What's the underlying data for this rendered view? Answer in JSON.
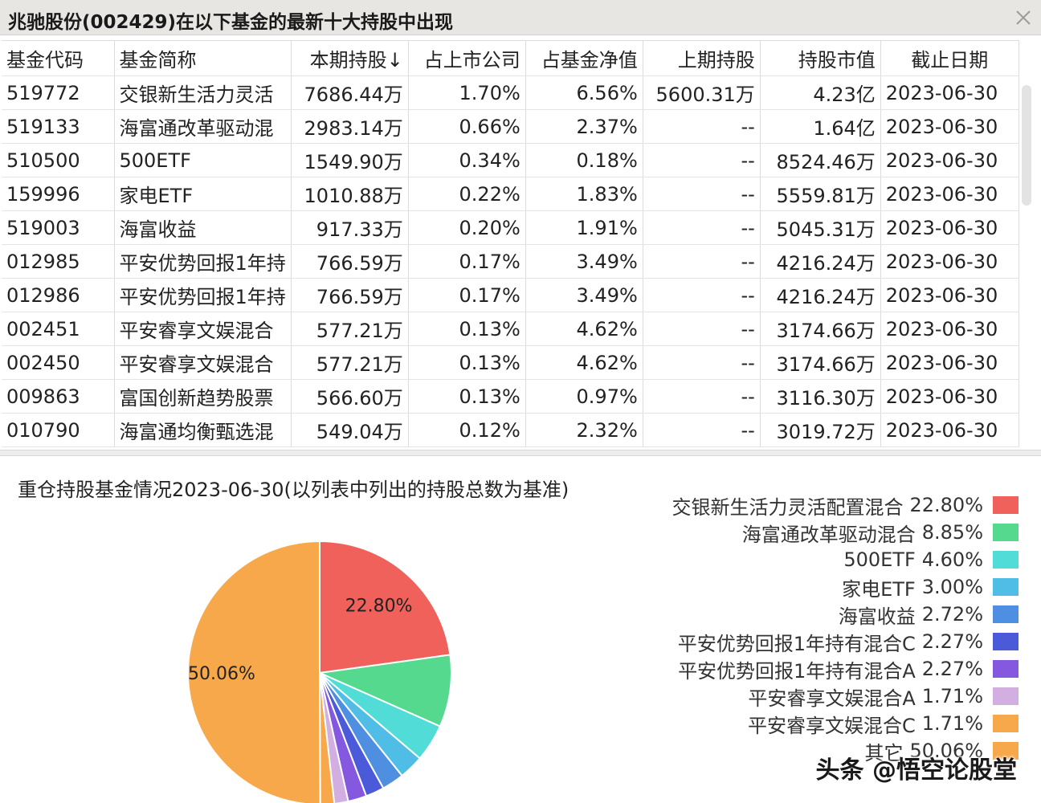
{
  "window": {
    "title": "兆驰股份(002429)在以下基金的最新十大持股中出现"
  },
  "table": {
    "headers": [
      "基金代码",
      "基金简称",
      "本期持股↓",
      "占上市公司",
      "占基金净值",
      "上期持股",
      "持股市值",
      "截止日期"
    ],
    "rows": [
      [
        "519772",
        "交银新生活力灵活",
        "7686.44万",
        "1.70%",
        "6.56%",
        "5600.31万",
        "4.23亿",
        "2023-06-30"
      ],
      [
        "519133",
        "海富通改革驱动混",
        "2983.14万",
        "0.66%",
        "2.37%",
        "--",
        "1.64亿",
        "2023-06-30"
      ],
      [
        "510500",
        "500ETF",
        "1549.90万",
        "0.34%",
        "0.18%",
        "--",
        "8524.46万",
        "2023-06-30"
      ],
      [
        "159996",
        "家电ETF",
        "1010.88万",
        "0.22%",
        "1.83%",
        "--",
        "5559.81万",
        "2023-06-30"
      ],
      [
        "519003",
        "海富收益",
        "917.33万",
        "0.20%",
        "1.91%",
        "--",
        "5045.31万",
        "2023-06-30"
      ],
      [
        "012985",
        "平安优势回报1年持",
        "766.59万",
        "0.17%",
        "3.49%",
        "--",
        "4216.24万",
        "2023-06-30"
      ],
      [
        "012986",
        "平安优势回报1年持",
        "766.59万",
        "0.17%",
        "3.49%",
        "--",
        "4216.24万",
        "2023-06-30"
      ],
      [
        "002451",
        "平安睿享文娱混合",
        "577.21万",
        "0.13%",
        "4.62%",
        "--",
        "3174.66万",
        "2023-06-30"
      ],
      [
        "002450",
        "平安睿享文娱混合",
        "577.21万",
        "0.13%",
        "4.62%",
        "--",
        "3174.66万",
        "2023-06-30"
      ],
      [
        "009863",
        "富国创新趋势股票",
        "566.60万",
        "0.13%",
        "0.97%",
        "--",
        "3116.30万",
        "2023-06-30"
      ],
      [
        "010790",
        "海富通均衡甄选混",
        "549.04万",
        "0.12%",
        "2.32%",
        "--",
        "3019.72万",
        "2023-06-30"
      ]
    ]
  },
  "chart_data": {
    "type": "pie",
    "title": "重仓持股基金情况2023-06-30(以列表中列出的持股总数为基准)",
    "slices": [
      {
        "name": "交银新生活力灵活配置混合",
        "value": 22.8,
        "label": "22.80%",
        "color": "#f0615b"
      },
      {
        "name": "海富通改革驱动混合",
        "value": 8.85,
        "label": "8.85%",
        "color": "#54d98f"
      },
      {
        "name": "500ETF",
        "value": 4.6,
        "label": "4.60%",
        "color": "#52dcd8"
      },
      {
        "name": "家电ETF",
        "value": 3.0,
        "label": "3.00%",
        "color": "#4fbde6"
      },
      {
        "name": "海富收益",
        "value": 2.72,
        "label": "2.72%",
        "color": "#4f8fe2"
      },
      {
        "name": "平安优势回报1年持有混合C",
        "value": 2.27,
        "label": "2.27%",
        "color": "#4a5ad8"
      },
      {
        "name": "平安优势回报1年持有混合A",
        "value": 2.27,
        "label": "2.27%",
        "color": "#8558e0"
      },
      {
        "name": "平安睿享文娱混合A",
        "value": 1.71,
        "label": "1.71%",
        "color": "#d3aee0"
      },
      {
        "name": "平安睿享文娱混合C",
        "value": 1.71,
        "label": "1.71%",
        "color": "#f7a84a"
      },
      {
        "name": "其它",
        "value": 50.06,
        "label": "50.06%",
        "color": "#f7a84a"
      }
    ],
    "data_labels": [
      "22.80%",
      "50.06%"
    ]
  },
  "watermark": "头条 @悟空论股堂"
}
